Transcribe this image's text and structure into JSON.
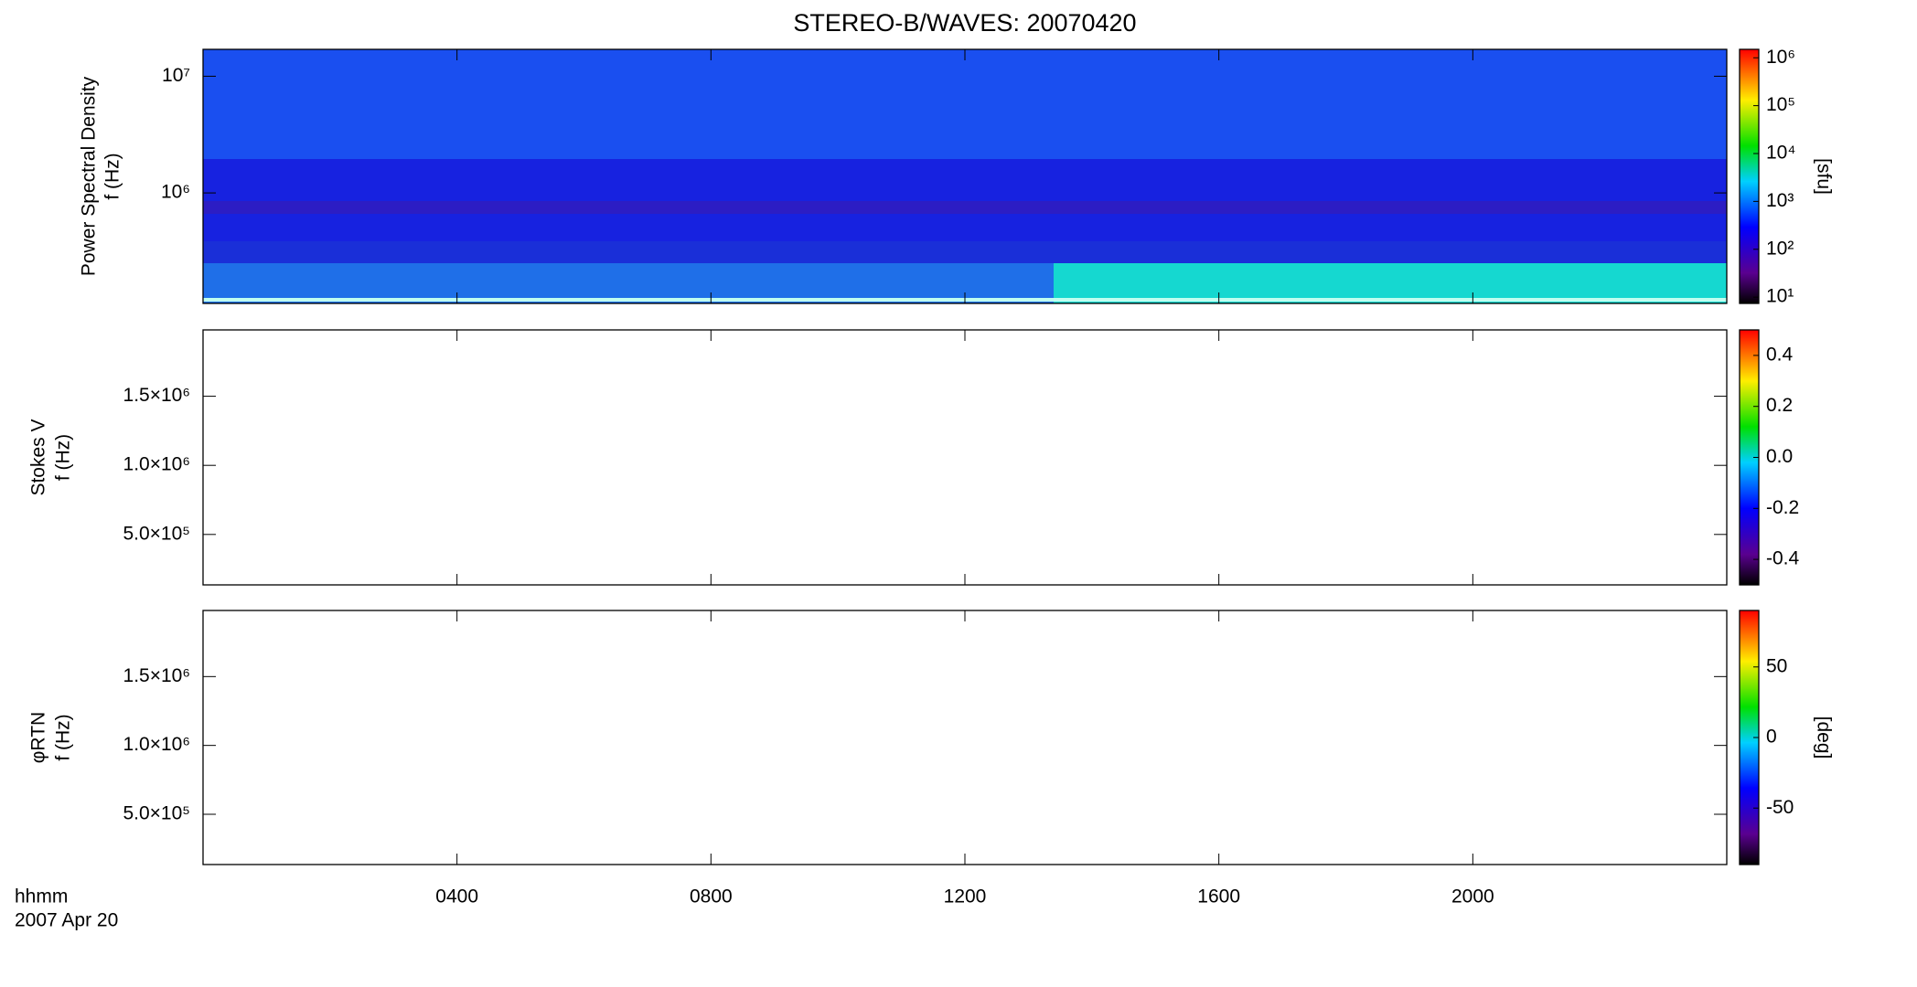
{
  "chart_data": {
    "type": "spectrogram",
    "title": "STEREO-B/WAVES: 20070420",
    "x_label": "hhmm",
    "date_label": "2007 Apr 20",
    "xlim": [
      0,
      24
    ],
    "xticks": [
      {
        "value": 4,
        "label": "0400"
      },
      {
        "value": 8,
        "label": "0800"
      },
      {
        "value": 12,
        "label": "1200"
      },
      {
        "value": 16,
        "label": "1600"
      },
      {
        "value": 20,
        "label": "2000"
      }
    ],
    "panels": [
      {
        "ylabel": [
          "Power Spectral Density",
          "f (Hz)"
        ],
        "log": true,
        "ylim": [
          113000,
          17000000
        ],
        "yticks": [
          {
            "value": 1000000,
            "label": "10⁶"
          },
          {
            "value": 10000000,
            "label": "10⁷"
          }
        ],
        "colorbar": {
          "label": "[sfu]",
          "log": true,
          "lim": [
            7.4,
            1500000
          ],
          "ticks": [
            {
              "value": 10,
              "label": "10¹"
            },
            {
              "value": 100,
              "label": "10²"
            },
            {
              "value": 1000,
              "label": "10³"
            },
            {
              "value": 10000,
              "label": "10⁴"
            },
            {
              "value": 100000,
              "label": "10⁵"
            },
            {
              "value": 1000000,
              "label": "10⁶"
            }
          ]
        }
      },
      {
        "ylabel": [
          "Stokes V",
          "f (Hz)"
        ],
        "log": false,
        "ylim": [
          135000,
          1980000
        ],
        "yticks": [
          {
            "value": 500000,
            "label": "5.0×10⁵"
          },
          {
            "value": 1000000,
            "label": "1.0×10⁶"
          },
          {
            "value": 1500000,
            "label": "1.5×10⁶"
          }
        ],
        "colorbar": {
          "log": false,
          "lim": [
            -0.5,
            0.5
          ],
          "ticks": [
            {
              "value": -0.4,
              "label": "-0.4"
            },
            {
              "value": -0.2,
              "label": "-0.2"
            },
            {
              "value": 0,
              "label": "0.0"
            },
            {
              "value": 0.2,
              "label": "0.2"
            },
            {
              "value": 0.4,
              "label": "0.4"
            }
          ]
        }
      },
      {
        "ylabel": [
          "φRTN",
          "f (Hz)"
        ],
        "log": false,
        "ylim": [
          135000,
          1980000
        ],
        "yticks": [
          {
            "value": 500000,
            "label": "5.0×10⁵"
          },
          {
            "value": 1000000,
            "label": "1.0×10⁶"
          },
          {
            "value": 1500000,
            "label": "1.5×10⁶"
          }
        ],
        "colorbar": {
          "label": "[deg]",
          "log": false,
          "lim": [
            -90,
            90
          ],
          "ticks": [
            -50,
            0,
            50
          ]
        }
      }
    ]
  }
}
